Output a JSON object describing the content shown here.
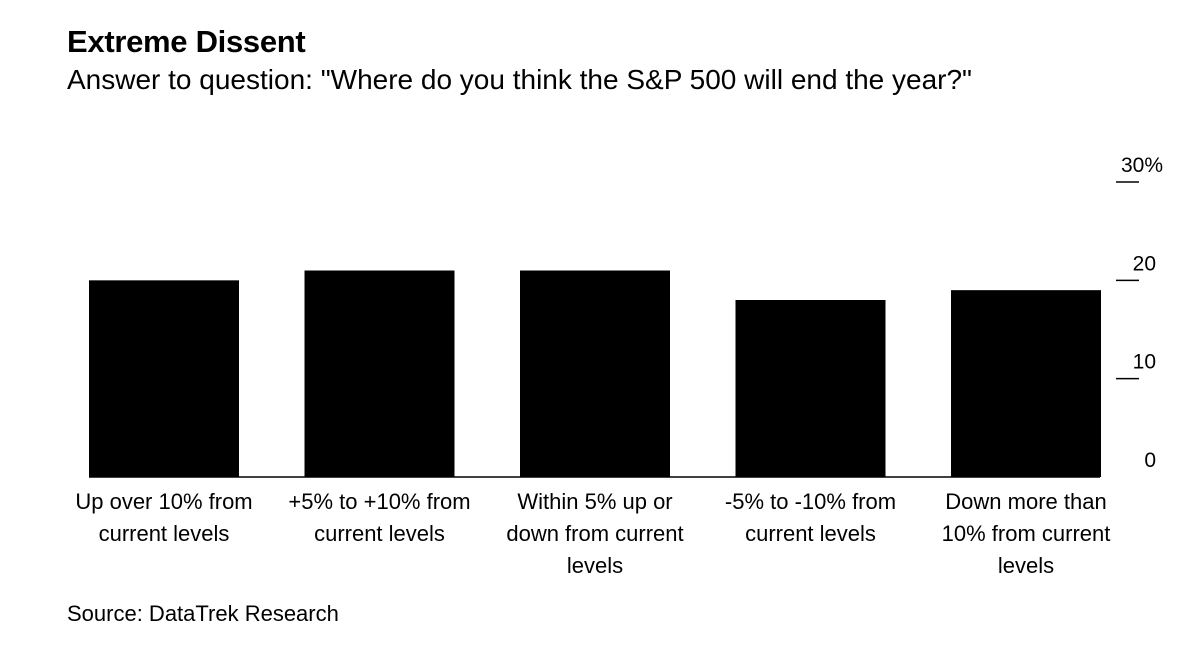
{
  "header": {
    "title": "Extreme Dissent",
    "subtitle": "Answer to question: \"Where do you think the S&P 500 will end the year?\""
  },
  "footer": {
    "source": "Source: DataTrek Research"
  },
  "colors": {
    "bar": "#000000",
    "axis": "#000000",
    "background": "#ffffff"
  },
  "chart_data": {
    "type": "bar",
    "title": "Extreme Dissent",
    "subtitle": "Answer to question: \"Where do you think the S&P 500 will end the year?\"",
    "xlabel": "",
    "ylabel": "",
    "ylim": [
      0,
      30
    ],
    "yticks": [
      0,
      10,
      20,
      30
    ],
    "ytick_labels": [
      "0",
      "10",
      "20",
      "30%"
    ],
    "y_axis_position": "right",
    "grid": false,
    "categories": [
      [
        "Up over 10% from",
        "current levels"
      ],
      [
        "+5% to +10% from",
        "current levels"
      ],
      [
        "Within 5% up or",
        "down from current",
        "levels"
      ],
      [
        "-5% to -10% from",
        "current levels"
      ],
      [
        "Down more than",
        "10% from current",
        "levels"
      ]
    ],
    "values": [
      20,
      21,
      21,
      18,
      19
    ]
  }
}
